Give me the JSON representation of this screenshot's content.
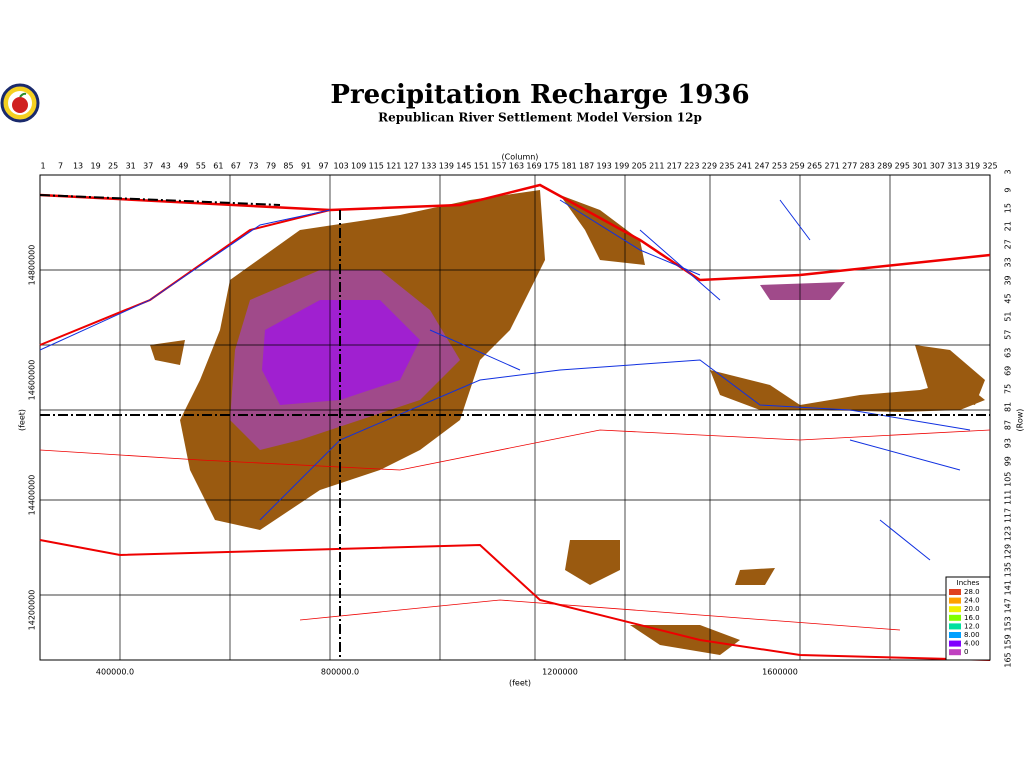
{
  "header": {
    "title": "Precipitation Recharge 1936",
    "subtitle": "Republican River Settlement Model Version 12p"
  },
  "map": {
    "column_label": "(Column)",
    "columns": [
      1,
      7,
      13,
      19,
      25,
      31,
      37,
      43,
      49,
      55,
      61,
      67,
      73,
      79,
      85,
      91,
      97,
      103,
      109,
      115,
      121,
      127,
      133,
      139,
      145,
      151,
      157,
      163,
      169,
      175,
      181,
      187,
      193,
      199,
      205,
      211,
      217,
      223,
      229,
      235,
      241,
      247,
      253,
      259,
      265,
      271,
      277,
      283,
      289,
      295,
      301,
      307,
      313,
      319,
      325
    ],
    "row_label": "(Row)",
    "rows": [
      3,
      9,
      15,
      21,
      27,
      33,
      39,
      45,
      51,
      57,
      63,
      69,
      75,
      81,
      87,
      93,
      99,
      105,
      111,
      117,
      123,
      129,
      135,
      141,
      147,
      153,
      159,
      165
    ],
    "x_label": "(feet)",
    "x_ticks": [
      "400000.0",
      "800000.0",
      "1200000",
      "1600000"
    ],
    "y_label": "(feet)",
    "y_ticks": [
      "14800000",
      "14600000",
      "14400000",
      "14200000"
    ]
  },
  "legend": {
    "title": "Inches",
    "entries": [
      "28.0",
      "24.0",
      "20.0",
      "16.0",
      "12.0",
      "8.00",
      "4.00",
      "0"
    ]
  }
}
